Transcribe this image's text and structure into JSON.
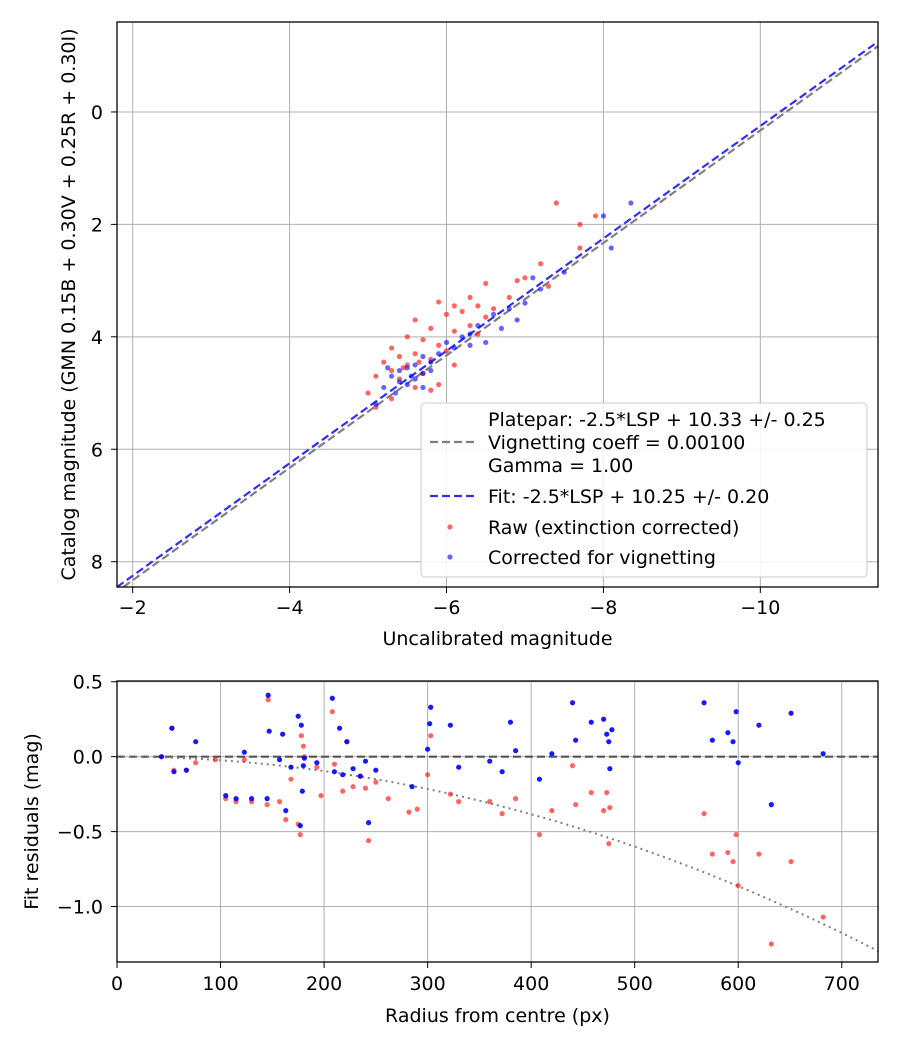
{
  "colors": {
    "raw": "#ff0000",
    "corrected": "#0000ff",
    "platepar_line": "#808080",
    "fit_line": "#3030ee",
    "grid": "#b0b0b0",
    "model_curve": "#808080"
  },
  "chart_data": [
    {
      "type": "scatter",
      "title": "",
      "xlabel": "Uncalibrated magnitude",
      "ylabel": "Catalog magnitude (GMN 0.15B + 0.30V + 0.25R + 0.30I)",
      "xlim": [
        -1.8,
        -11.5
      ],
      "ylim": [
        8.45,
        -1.6
      ],
      "xticks": [
        -2,
        -4,
        -6,
        -8,
        -10
      ],
      "xtick_labels": [
        "−2",
        "−4",
        "−6",
        "−8",
        "−10"
      ],
      "yticks": [
        0,
        2,
        4,
        6,
        8
      ],
      "ytick_labels": [
        "0",
        "2",
        "4",
        "6",
        "8"
      ],
      "grid": true,
      "legend_position": "lower-right",
      "lines": [
        {
          "name": "Platepar: -2.5*LSP + 10.33 +/- 0.25",
          "sub_labels": [
            "Vignetting coeff = 0.00100",
            "Gamma = 1.00"
          ],
          "slope": 1.0,
          "intercept": 10.33,
          "style": "dashed",
          "color_key": "platepar_line"
        },
        {
          "name": "Fit: -2.5*LSP + 10.25 +/- 0.20",
          "sub_labels": [],
          "slope": 1.0,
          "intercept": 10.25,
          "style": "dashed",
          "color_key": "fit_line"
        }
      ],
      "series": [
        {
          "name": "Raw (extinction corrected)",
          "color_key": "raw",
          "points": [
            [
              -7.4,
              1.62
            ],
            [
              -7.9,
              1.85
            ],
            [
              -7.7,
              2.0
            ],
            [
              -7.7,
              2.42
            ],
            [
              -7.2,
              2.7
            ],
            [
              -7.0,
              2.95
            ],
            [
              -6.9,
              3.0
            ],
            [
              -6.5,
              3.05
            ],
            [
              -7.3,
              3.1
            ],
            [
              -6.3,
              3.3
            ],
            [
              -6.8,
              3.3
            ],
            [
              -5.9,
              3.38
            ],
            [
              -6.1,
              3.45
            ],
            [
              -6.4,
              3.45
            ],
            [
              -6.6,
              3.5
            ],
            [
              -6.0,
              3.6
            ],
            [
              -6.2,
              3.55
            ],
            [
              -6.5,
              3.65
            ],
            [
              -5.6,
              3.7
            ],
            [
              -6.3,
              3.8
            ],
            [
              -5.8,
              3.85
            ],
            [
              -6.1,
              3.9
            ],
            [
              -5.5,
              4.0
            ],
            [
              -5.7,
              4.05
            ],
            [
              -6.4,
              3.95
            ],
            [
              -5.9,
              4.15
            ],
            [
              -5.3,
              4.2
            ],
            [
              -6.0,
              4.25
            ],
            [
              -5.6,
              4.3
            ],
            [
              -5.4,
              4.35
            ],
            [
              -5.8,
              4.4
            ],
            [
              -5.2,
              4.45
            ],
            [
              -5.5,
              4.5
            ],
            [
              -6.1,
              4.5
            ],
            [
              -5.3,
              4.6
            ],
            [
              -5.7,
              4.65
            ],
            [
              -5.1,
              4.7
            ],
            [
              -5.4,
              4.75
            ],
            [
              -5.9,
              4.85
            ],
            [
              -5.6,
              4.9
            ],
            [
              -5.0,
              5.0
            ],
            [
              -5.3,
              5.1
            ],
            [
              -5.1,
              5.25
            ],
            [
              -5.8,
              4.95
            ],
            [
              -5.45,
              4.55
            ],
            [
              -5.65,
              4.45
            ]
          ]
        },
        {
          "name": "Corrected for vignetting",
          "color_key": "corrected",
          "points": [
            [
              -8.35,
              1.62
            ],
            [
              -8.0,
              1.85
            ],
            [
              -8.1,
              2.42
            ],
            [
              -7.5,
              2.85
            ],
            [
              -7.1,
              2.95
            ],
            [
              -7.2,
              3.15
            ],
            [
              -7.0,
              3.4
            ],
            [
              -6.8,
              3.5
            ],
            [
              -6.6,
              3.6
            ],
            [
              -6.4,
              3.8
            ],
            [
              -6.7,
              3.85
            ],
            [
              -6.3,
              3.95
            ],
            [
              -6.2,
              4.0
            ],
            [
              -6.0,
              4.1
            ],
            [
              -6.1,
              4.2
            ],
            [
              -5.9,
              4.3
            ],
            [
              -5.7,
              4.35
            ],
            [
              -6.5,
              4.1
            ],
            [
              -5.8,
              4.45
            ],
            [
              -5.6,
              4.5
            ],
            [
              -5.5,
              4.55
            ],
            [
              -5.4,
              4.6
            ],
            [
              -5.7,
              4.65
            ],
            [
              -5.3,
              4.7
            ],
            [
              -5.6,
              4.75
            ],
            [
              -5.4,
              4.8
            ],
            [
              -5.5,
              4.85
            ],
            [
              -5.2,
              4.9
            ],
            [
              -5.7,
              4.9
            ],
            [
              -5.35,
              5.0
            ],
            [
              -5.1,
              5.2
            ],
            [
              -5.55,
              4.7
            ],
            [
              -5.25,
              4.55
            ],
            [
              -5.8,
              4.6
            ],
            [
              -6.3,
              4.15
            ],
            [
              -6.9,
              3.7
            ]
          ]
        }
      ]
    },
    {
      "type": "scatter",
      "title": "",
      "xlabel": "Radius from centre (px)",
      "ylabel": "Fit residuals (mag)",
      "xlim": [
        0,
        735
      ],
      "ylim": [
        -1.37,
        0.505
      ],
      "xticks": [
        0,
        100,
        200,
        300,
        400,
        500,
        600,
        700
      ],
      "xtick_labels": [
        "0",
        "100",
        "200",
        "300",
        "400",
        "500",
        "600",
        "700"
      ],
      "yticks": [
        0.5,
        0.0,
        -0.5,
        -1.0
      ],
      "ytick_labels": [
        "0.5",
        "0.0",
        "−0.5",
        "−1.0"
      ],
      "grid": true,
      "reference_line": {
        "y": 0.0,
        "style": "dashed",
        "color_key": "platepar_line"
      },
      "model_curve": {
        "type": "quadratic",
        "coefficient": -2.4e-06,
        "style": "dotted",
        "color_key": "model_curve"
      },
      "series": [
        {
          "name": "Raw (extinction corrected)",
          "color_key": "raw",
          "points": [
            [
              43,
              0.0
            ],
            [
              53,
              0.19
            ],
            [
              55,
              -0.09
            ],
            [
              67,
              -0.09
            ],
            [
              76,
              -0.04
            ],
            [
              95,
              -0.02
            ],
            [
              105,
              -0.28
            ],
            [
              115,
              -0.3
            ],
            [
              123,
              -0.02
            ],
            [
              130,
              -0.3
            ],
            [
              145,
              -0.32
            ],
            [
              146,
              0.38
            ],
            [
              157,
              -0.3
            ],
            [
              163,
              -0.42
            ],
            [
              168,
              -0.15
            ],
            [
              175,
              -0.45
            ],
            [
              177,
              -0.52
            ],
            [
              178,
              0.14
            ],
            [
              180,
              0.07
            ],
            [
              181,
              0.0
            ],
            [
              193,
              -0.07
            ],
            [
              197,
              -0.26
            ],
            [
              208,
              0.3
            ],
            [
              210,
              -0.05
            ],
            [
              218,
              -0.23
            ],
            [
              222,
              0.1
            ],
            [
              228,
              -0.2
            ],
            [
              235,
              -0.13
            ],
            [
              240,
              -0.21
            ],
            [
              243,
              -0.56
            ],
            [
              250,
              -0.17
            ],
            [
              262,
              -0.28
            ],
            [
              282,
              -0.37
            ],
            [
              290,
              -0.35
            ],
            [
              300,
              -0.12
            ],
            [
              303,
              0.14
            ],
            [
              322,
              -0.25
            ],
            [
              330,
              -0.3
            ],
            [
              360,
              -0.3
            ],
            [
              372,
              -0.38
            ],
            [
              385,
              -0.28
            ],
            [
              408,
              -0.52
            ],
            [
              420,
              -0.36
            ],
            [
              440,
              -0.06
            ],
            [
              443,
              -0.32
            ],
            [
              458,
              -0.24
            ],
            [
              470,
              -0.36
            ],
            [
              473,
              -0.24
            ],
            [
              475,
              -0.58
            ],
            [
              476,
              -0.34
            ],
            [
              567,
              -0.38
            ],
            [
              575,
              -0.65
            ],
            [
              590,
              -0.64
            ],
            [
              595,
              -0.7
            ],
            [
              598,
              -0.52
            ],
            [
              600,
              -0.86
            ],
            [
              620,
              -0.65
            ],
            [
              632,
              -1.25
            ],
            [
              651,
              -0.7
            ],
            [
              682,
              -1.07
            ]
          ]
        },
        {
          "name": "Corrected for vignetting",
          "color_key": "corrected",
          "points": [
            [
              43,
              0.0
            ],
            [
              53,
              0.19
            ],
            [
              55,
              -0.1
            ],
            [
              67,
              -0.09
            ],
            [
              76,
              0.1
            ],
            [
              105,
              -0.26
            ],
            [
              115,
              -0.28
            ],
            [
              123,
              0.03
            ],
            [
              130,
              -0.28
            ],
            [
              145,
              -0.28
            ],
            [
              146,
              0.41
            ],
            [
              147,
              0.17
            ],
            [
              157,
              -0.02
            ],
            [
              160,
              0.15
            ],
            [
              163,
              -0.36
            ],
            [
              168,
              -0.07
            ],
            [
              175,
              0.27
            ],
            [
              178,
              0.21
            ],
            [
              177,
              -0.46
            ],
            [
              179,
              -0.23
            ],
            [
              180,
              -0.06
            ],
            [
              181,
              -0.01
            ],
            [
              193,
              -0.04
            ],
            [
              208,
              0.39
            ],
            [
              210,
              -0.1
            ],
            [
              215,
              0.19
            ],
            [
              218,
              -0.12
            ],
            [
              222,
              0.1
            ],
            [
              228,
              -0.08
            ],
            [
              235,
              -0.13
            ],
            [
              240,
              -0.03
            ],
            [
              243,
              -0.44
            ],
            [
              250,
              -0.09
            ],
            [
              285,
              -0.2
            ],
            [
              300,
              0.05
            ],
            [
              303,
              0.33
            ],
            [
              302,
              0.22
            ],
            [
              322,
              0.21
            ],
            [
              330,
              -0.07
            ],
            [
              360,
              -0.03
            ],
            [
              372,
              -0.1
            ],
            [
              380,
              0.23
            ],
            [
              385,
              0.04
            ],
            [
              408,
              -0.15
            ],
            [
              420,
              0.02
            ],
            [
              440,
              0.36
            ],
            [
              443,
              0.11
            ],
            [
              458,
              0.23
            ],
            [
              470,
              0.25
            ],
            [
              473,
              0.15
            ],
            [
              475,
              0.1
            ],
            [
              476,
              -0.08
            ],
            [
              478,
              0.18
            ],
            [
              567,
              0.36
            ],
            [
              575,
              0.11
            ],
            [
              590,
              0.16
            ],
            [
              595,
              0.1
            ],
            [
              598,
              0.3
            ],
            [
              600,
              -0.04
            ],
            [
              620,
              0.21
            ],
            [
              632,
              -0.32
            ],
            [
              651,
              0.29
            ],
            [
              682,
              0.02
            ]
          ]
        }
      ]
    }
  ]
}
